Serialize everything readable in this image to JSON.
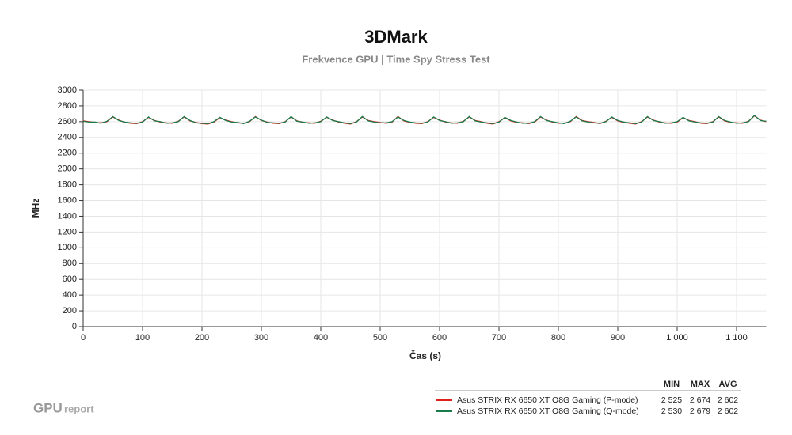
{
  "chart_data": {
    "type": "line",
    "title": "3DMark",
    "subtitle": "Frekvence GPU | Time Spy Stress Test",
    "x_label": "Čas (s)",
    "y_label": "MHz",
    "xlim": [
      0,
      1150
    ],
    "ylim": [
      0,
      3000
    ],
    "xticks": [
      0,
      100,
      200,
      300,
      400,
      500,
      600,
      700,
      800,
      900,
      {
        "value": 1000,
        "label": "1 000"
      },
      {
        "value": 1100,
        "label": "1 100"
      }
    ],
    "yticks": [
      0,
      200,
      400,
      600,
      800,
      1000,
      1200,
      1400,
      1600,
      1800,
      2000,
      2200,
      2400,
      2600,
      2800,
      3000
    ],
    "grid": true,
    "x": [
      0,
      10,
      20,
      30,
      40,
      50,
      60,
      70,
      80,
      90,
      100,
      110,
      120,
      130,
      140,
      150,
      160,
      170,
      180,
      190,
      200,
      210,
      220,
      230,
      240,
      250,
      260,
      270,
      280,
      290,
      300,
      310,
      320,
      330,
      340,
      350,
      360,
      370,
      380,
      390,
      400,
      410,
      420,
      430,
      440,
      450,
      460,
      470,
      480,
      490,
      500,
      510,
      520,
      530,
      540,
      550,
      560,
      570,
      580,
      590,
      600,
      610,
      620,
      630,
      640,
      650,
      660,
      670,
      680,
      690,
      700,
      710,
      720,
      730,
      740,
      750,
      760,
      770,
      780,
      790,
      800,
      810,
      820,
      830,
      840,
      850,
      860,
      870,
      880,
      890,
      900,
      910,
      920,
      930,
      940,
      950,
      960,
      970,
      980,
      990,
      1000,
      1010,
      1020,
      1030,
      1040,
      1050,
      1060,
      1070,
      1080,
      1090,
      1100,
      1110,
      1120,
      1130,
      1140,
      1150
    ],
    "series": [
      {
        "name": "Asus STRIX RX 6650 XT O8G Gaming (P-mode)",
        "color": "#e0201b",
        "values": [
          2610,
          2600,
          2590,
          2585,
          2600,
          2660,
          2620,
          2590,
          2580,
          2575,
          2600,
          2655,
          2615,
          2595,
          2585,
          2580,
          2605,
          2660,
          2610,
          2590,
          2575,
          2570,
          2595,
          2650,
          2620,
          2600,
          2585,
          2580,
          2600,
          2665,
          2615,
          2595,
          2580,
          2575,
          2600,
          2660,
          2610,
          2590,
          2585,
          2580,
          2605,
          2655,
          2620,
          2595,
          2580,
          2570,
          2600,
          2660,
          2615,
          2600,
          2590,
          2580,
          2595,
          2665,
          2610,
          2590,
          2580,
          2575,
          2600,
          2655,
          2620,
          2595,
          2585,
          2580,
          2605,
          2660,
          2615,
          2600,
          2580,
          2570,
          2600,
          2650,
          2610,
          2590,
          2585,
          2575,
          2595,
          2660,
          2620,
          2595,
          2580,
          2580,
          2600,
          2665,
          2615,
          2600,
          2590,
          2575,
          2605,
          2655,
          2610,
          2590,
          2580,
          2570,
          2600,
          2660,
          2620,
          2595,
          2585,
          2580,
          2595,
          2650,
          2615,
          2600,
          2580,
          2575,
          2600,
          2660,
          2610,
          2590,
          2585,
          2580,
          2605,
          2674,
          2620,
          2600
        ]
      },
      {
        "name": "Asus STRIX RX 6650 XT O8G Gaming (Q-mode)",
        "color": "#1a7a4a",
        "values": [
          2605,
          2595,
          2595,
          2580,
          2605,
          2665,
          2615,
          2595,
          2585,
          2580,
          2595,
          2660,
          2610,
          2600,
          2580,
          2585,
          2600,
          2665,
          2615,
          2585,
          2580,
          2575,
          2600,
          2655,
          2615,
          2595,
          2590,
          2575,
          2605,
          2660,
          2620,
          2590,
          2585,
          2580,
          2595,
          2665,
          2605,
          2595,
          2580,
          2585,
          2600,
          2660,
          2615,
          2600,
          2585,
          2575,
          2595,
          2665,
          2610,
          2595,
          2585,
          2585,
          2600,
          2660,
          2615,
          2595,
          2585,
          2580,
          2595,
          2660,
          2615,
          2600,
          2580,
          2585,
          2600,
          2665,
          2610,
          2595,
          2585,
          2575,
          2595,
          2655,
          2615,
          2595,
          2580,
          2580,
          2600,
          2665,
          2615,
          2600,
          2585,
          2575,
          2605,
          2660,
          2610,
          2595,
          2585,
          2580,
          2600,
          2660,
          2615,
          2595,
          2585,
          2575,
          2595,
          2665,
          2615,
          2600,
          2580,
          2585,
          2600,
          2655,
          2610,
          2595,
          2585,
          2580,
          2595,
          2665,
          2615,
          2595,
          2580,
          2585,
          2600,
          2679,
          2615,
          2605
        ]
      }
    ],
    "legend_table": {
      "headers": [
        "MIN",
        "MAX",
        "AVG"
      ],
      "rows": [
        [
          "2 525",
          "2 674",
          "2 602"
        ],
        [
          "2 530",
          "2 679",
          "2 602"
        ]
      ]
    },
    "logo": {
      "main": "GPU",
      "sub": "report"
    }
  }
}
